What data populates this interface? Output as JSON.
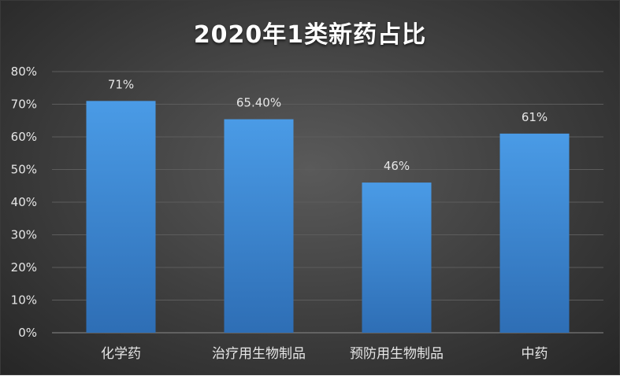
{
  "chart_data": {
    "type": "bar",
    "title": "2020年1类新药占比",
    "categories": [
      "化学药",
      "治疗用生物制品",
      "预防用生物制品",
      "中药"
    ],
    "values": [
      71,
      65.4,
      46,
      61
    ],
    "data_labels": [
      "71%",
      "65.40%",
      "46%",
      "61%"
    ],
    "ylim": [
      0,
      80
    ],
    "yticks": [
      0,
      10,
      20,
      30,
      40,
      50,
      60,
      70,
      80
    ],
    "ytick_labels": [
      "0%",
      "10%",
      "20%",
      "30%",
      "40%",
      "50%",
      "60%",
      "70%",
      "80%"
    ],
    "xlabel": "",
    "ylabel": "",
    "grid": true,
    "legend": "none",
    "colors": {
      "bar_top": "#4a9be6",
      "bar_bottom": "#2e6eb5",
      "grid": "#5c5c5c",
      "background": "#3d3d3d",
      "text": "#e6e6e6"
    }
  }
}
